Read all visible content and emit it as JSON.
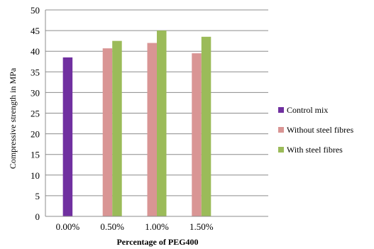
{
  "chart_data": {
    "type": "bar",
    "title": "",
    "xlabel": "Percentage of PEG400",
    "ylabel": "Compressive strength in MPa",
    "categories": [
      "0.00%",
      "0.50%",
      "1.00%",
      "1.50%"
    ],
    "ylim": [
      0,
      50
    ],
    "yticks": [
      0,
      5,
      10,
      15,
      20,
      25,
      30,
      35,
      40,
      45,
      50
    ],
    "grid": true,
    "legend_position": "right",
    "series": [
      {
        "name": "Control mix",
        "color": "#7030A0",
        "values": [
          38.5,
          null,
          null,
          null
        ]
      },
      {
        "name": "Without steel fibres",
        "color": "#D99594",
        "values": [
          null,
          40.7,
          42.0,
          39.5
        ]
      },
      {
        "name": "With steel fibres",
        "color": "#9BBB59",
        "values": [
          null,
          42.5,
          45.0,
          43.5
        ]
      }
    ]
  }
}
